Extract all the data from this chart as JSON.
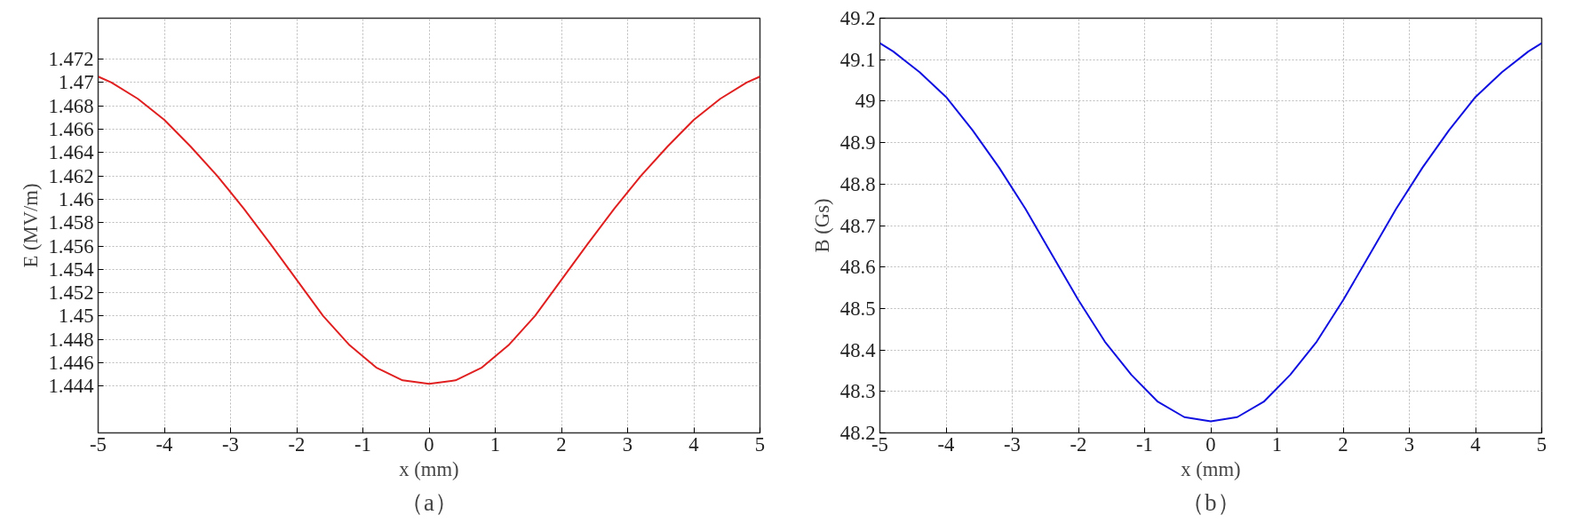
{
  "chart_data": [
    {
      "type": "line",
      "xlabel": "x (mm)",
      "ylabel": "E (MV/m)",
      "annotations": [
        "（a）"
      ],
      "grid": true,
      "line_style": "solid",
      "marker": "none",
      "x": [
        -5,
        -4.8,
        -4.4,
        -4,
        -3.6,
        -3.2,
        -2.8,
        -2.4,
        -2,
        -1.6,
        -1.2,
        -0.8,
        -0.4,
        0,
        0.4,
        0.8,
        1.2,
        1.6,
        2,
        2.4,
        2.8,
        3.2,
        3.6,
        4,
        4.4,
        4.8,
        5
      ],
      "series": [
        {
          "color": "#e02020",
          "values": [
            1.4705,
            1.47,
            1.4686,
            1.4668,
            1.4645,
            1.462,
            1.4592,
            1.4562,
            1.4531,
            1.45,
            1.4475,
            1.4456,
            1.4445,
            1.4442,
            1.4445,
            1.4456,
            1.4475,
            1.45,
            1.4531,
            1.4562,
            1.4592,
            1.462,
            1.4645,
            1.4668,
            1.4686,
            1.47,
            1.4705
          ]
        }
      ],
      "xlim": [
        -5,
        5
      ],
      "xticks": [
        -5,
        -4,
        -3,
        -2,
        -1,
        0,
        1,
        2,
        3,
        4,
        5
      ],
      "ylim": [
        1.44,
        1.4755
      ],
      "yticks": [
        1.444,
        1.446,
        1.448,
        1.45,
        1.452,
        1.454,
        1.456,
        1.458,
        1.46,
        1.462,
        1.464,
        1.466,
        1.468,
        1.47,
        1.472
      ]
    },
    {
      "type": "line",
      "xlabel": "x (mm)",
      "ylabel": "B (Gs)",
      "annotations": [
        "（b）"
      ],
      "grid": true,
      "line_style": "solid",
      "marker": "none",
      "x": [
        -5,
        -4.8,
        -4.4,
        -4,
        -3.6,
        -3.2,
        -2.8,
        -2.4,
        -2,
        -1.6,
        -1.2,
        -0.8,
        -0.4,
        0,
        0.4,
        0.8,
        1.2,
        1.6,
        2,
        2.4,
        2.8,
        3.2,
        3.6,
        4,
        4.4,
        4.8,
        5
      ],
      "series": [
        {
          "color": "#1010e0",
          "values": [
            49.14,
            49.12,
            49.07,
            49.01,
            48.93,
            48.84,
            48.74,
            48.63,
            48.52,
            48.42,
            48.34,
            48.275,
            48.238,
            48.228,
            48.238,
            48.275,
            48.34,
            48.42,
            48.52,
            48.63,
            48.74,
            48.84,
            48.93,
            49.01,
            49.07,
            49.12,
            49.14
          ]
        }
      ],
      "xlim": [
        -5,
        5
      ],
      "xticks": [
        -5,
        -4,
        -3,
        -2,
        -1,
        0,
        1,
        2,
        3,
        4,
        5
      ],
      "ylim": [
        48.2,
        49.2
      ],
      "yticks": [
        48.2,
        48.3,
        48.4,
        48.5,
        48.6,
        48.7,
        48.8,
        48.9,
        49,
        49.1,
        49.2
      ]
    }
  ]
}
